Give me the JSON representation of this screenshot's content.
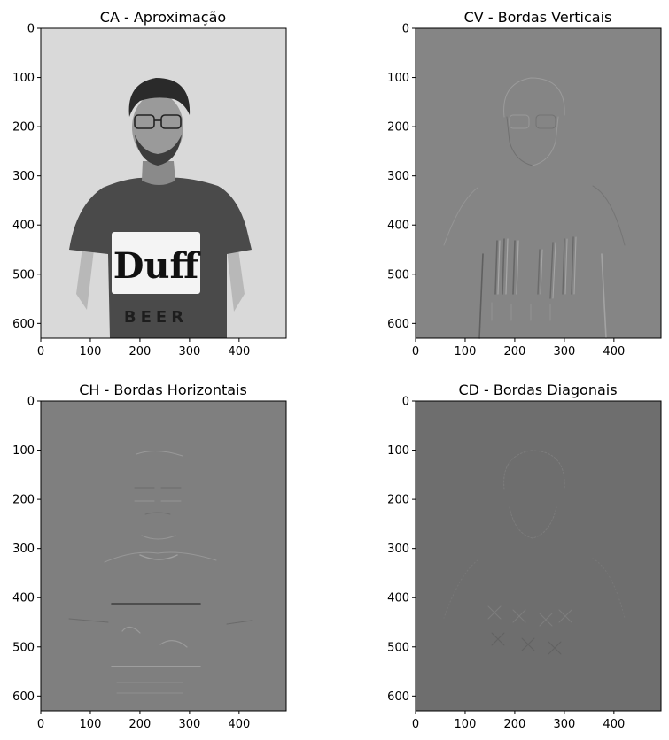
{
  "figure": {
    "panels": [
      {
        "id": "ca",
        "title": "CA - Aproximação",
        "image_kind": "approximation",
        "background": "#d6d6d6",
        "x_ticks": [
          "0",
          "100",
          "200",
          "300",
          "400"
        ],
        "y_ticks": [
          "0",
          "100",
          "200",
          "300",
          "400",
          "500",
          "600"
        ]
      },
      {
        "id": "cv",
        "title": "CV - Bordas Verticais",
        "image_kind": "vertical-edges",
        "background": "#858585",
        "x_ticks": [
          "0",
          "100",
          "200",
          "300",
          "400"
        ],
        "y_ticks": [
          "0",
          "100",
          "200",
          "300",
          "400",
          "500",
          "600"
        ]
      },
      {
        "id": "ch",
        "title": "CH - Bordas Horizontais",
        "image_kind": "horizontal-edges",
        "background": "#7f7f7f",
        "x_ticks": [
          "0",
          "100",
          "200",
          "300",
          "400"
        ],
        "y_ticks": [
          "0",
          "100",
          "200",
          "300",
          "400",
          "500",
          "600"
        ]
      },
      {
        "id": "cd",
        "title": "CD - Bordas Diagonais",
        "image_kind": "diagonal-edges",
        "background": "#6e6e6e",
        "x_ticks": [
          "0",
          "100",
          "200",
          "300",
          "400"
        ],
        "y_ticks": [
          "0",
          "100",
          "200",
          "300",
          "400",
          "500",
          "600"
        ]
      }
    ],
    "axis_range": {
      "x": [
        0,
        495
      ],
      "y": [
        0,
        630
      ]
    },
    "shirt_text": {
      "logo": "Duff",
      "sub": "BEER"
    }
  }
}
